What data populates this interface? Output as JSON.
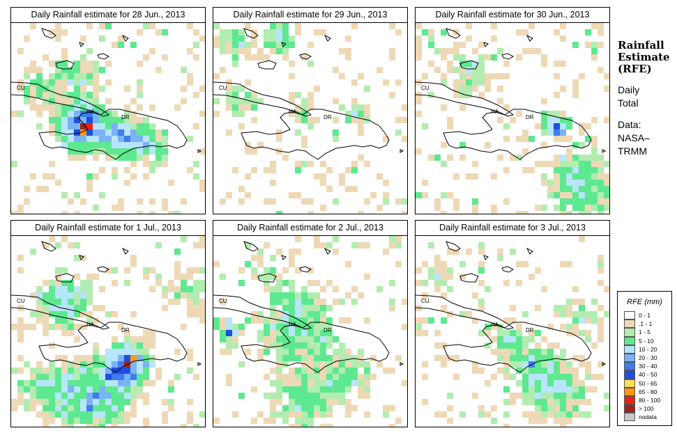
{
  "colors": {
    "c01": "#eed9b6",
    "c1_5": "#b2ecb0",
    "c5_10": "#5ee88f",
    "c10_20": "#b7e5fb",
    "c20_30": "#7ab3f3",
    "c30_40": "#3f7ced",
    "c40_50": "#1d4fde",
    "c50_65": "#fede55",
    "c65_80": "#fe9a0c",
    "c80_100": "#e82410",
    "c100": "#a0231c",
    "outline": "#000000"
  },
  "map_labels": {
    "cuba": "CU",
    "haiti": "HA",
    "dominican_republic": "DR"
  },
  "panels": [
    {
      "title": "Daily Rainfall estimate for  28 Jun., 2013"
    },
    {
      "title": "Daily Rainfall estimate for  29 Jun., 2013"
    },
    {
      "title": "Daily Rainfall estimate for  30 Jun., 2013"
    },
    {
      "title": "Daily Rainfall estimate for  1 Jul., 2013"
    },
    {
      "title": "Daily Rainfall estimate for  2 Jul., 2013"
    },
    {
      "title": "Daily Rainfall estimate for  3 Jul., 2013"
    }
  ],
  "sidebar": {
    "title_line1": "Rainfall",
    "title_line2": "Estimate",
    "title_line3": "(RFE)",
    "daily_line1": "Daily",
    "daily_line2": "Total",
    "data_line1": "Data:",
    "data_line2": "NASA–",
    "data_line3": "TRMM"
  },
  "legend": {
    "title": "RFE (mm)",
    "items": [
      {
        "label": "0 - 1",
        "color": "#ffffff"
      },
      {
        "label": ".1 - 1",
        "color": "#eed9b6"
      },
      {
        "label": "1 - 5",
        "color": "#b2ecb0"
      },
      {
        "label": "5 - 10",
        "color": "#5ee88f"
      },
      {
        "label": "10 - 20",
        "color": "#b7e5fb"
      },
      {
        "label": "20 - 30",
        "color": "#7ab3f3"
      },
      {
        "label": "30 - 40",
        "color": "#3f7ced"
      },
      {
        "label": "40 - 50",
        "color": "#1d4fde"
      },
      {
        "label": "50 - 65",
        "color": "#fede55"
      },
      {
        "label": "65 - 80",
        "color": "#fe9a0c"
      },
      {
        "label": "80 - 100",
        "color": "#e82410"
      },
      {
        "label": "> 100",
        "color": "#a0231c"
      },
      {
        "label": "nodata",
        "color": "#c8c8c8"
      }
    ]
  }
}
